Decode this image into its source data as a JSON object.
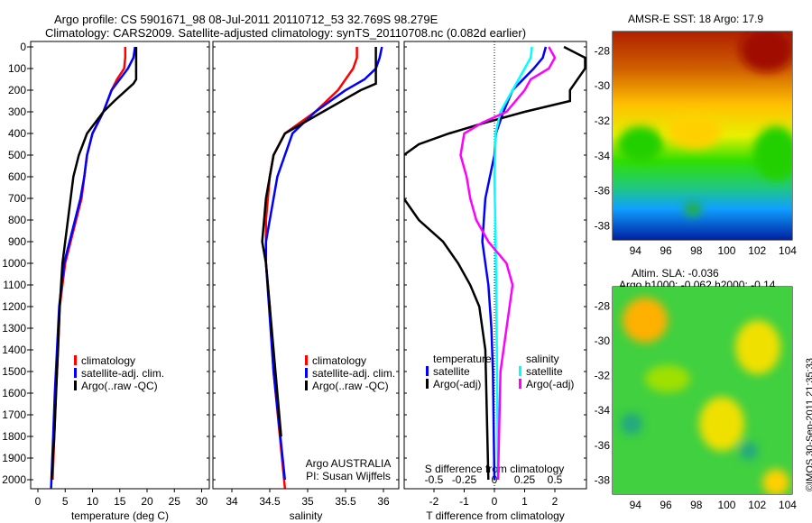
{
  "title_line1": "Argo profile: CS 5901671_98 08-Jul-2011 20110712_53 32.769S 98.279E",
  "title_line2": "Climatology: CARS2009. Satellite-adjusted climatology: synTS_20110708.nc (0.082d earlier)",
  "map1_title": "AMSR-E SST: 18 Argo: 17.9",
  "map2_title1": "Altim. SLA: -0.036",
  "map2_title2": "Argo h1000: -0.062 h2000: -0.14",
  "side_label": "©IMOS 30-Sep-2011 21:35:33",
  "colors": {
    "climatology": "#ff0000",
    "satellite": "#0000ff",
    "argo": "#000000",
    "s_satellite": "#00ffff",
    "s_argo": "#ff00ff"
  },
  "chart_data": [
    {
      "type": "line",
      "xlabel": "temperature (deg C)",
      "ylabel": "",
      "xlim": [
        -1.5,
        31
      ],
      "ylim": [
        2040,
        -25
      ],
      "xticks": [
        "0",
        "5",
        "10",
        "15",
        "20",
        "25",
        "30"
      ],
      "yticks": [
        "0",
        "100",
        "200",
        "300",
        "400",
        "500",
        "600",
        "700",
        "800",
        "900",
        "1000",
        "1100",
        "1200",
        "1300",
        "1400",
        "1500",
        "1600",
        "1700",
        "1800",
        "1900",
        "2000"
      ],
      "legend": [
        "climatology",
        "satellite-adj. clim.",
        "Argo(..raw -QC)"
      ],
      "series": [
        {
          "name": "climatology",
          "color": "#ff0000",
          "depth": [
            0,
            50,
            100,
            150,
            200,
            300,
            400,
            500,
            600,
            700,
            800,
            900,
            1000,
            1200,
            1400,
            1600,
            1800,
            2000
          ],
          "values": [
            16,
            16,
            15.8,
            14.5,
            13.5,
            12,
            10,
            9,
            8.5,
            8,
            7,
            6,
            5,
            4,
            3.7,
            3.3,
            3,
            2.7
          ]
        },
        {
          "name": "satellite-adj. clim.",
          "color": "#0000ff",
          "depth": [
            0,
            50,
            100,
            150,
            200,
            300,
            400,
            500,
            600,
            700,
            800,
            900,
            1000,
            1200,
            1400,
            1600,
            1800,
            2050
          ],
          "values": [
            17.8,
            17.5,
            16.5,
            15,
            13.5,
            12,
            10,
            9,
            8.5,
            7.8,
            6.8,
            5.8,
            4.8,
            3.9,
            3.5,
            3.1,
            2.8,
            2.4
          ]
        },
        {
          "name": "Argo(..raw -QC)",
          "color": "#000000",
          "depth": [
            0,
            50,
            150,
            170,
            250,
            300,
            400,
            500,
            600,
            700,
            900,
            1000,
            1200,
            1500,
            1800,
            2000
          ],
          "values": [
            18,
            18,
            18,
            17.5,
            14,
            12,
            9,
            7.5,
            6.5,
            6,
            5,
            4.5,
            4,
            3.5,
            3,
            2.5
          ]
        }
      ]
    },
    {
      "type": "line",
      "xlabel": "salinity",
      "xlim": [
        33.75,
        36.05
      ],
      "ylim": [
        2040,
        -25
      ],
      "xticks": [
        "34",
        "34.5",
        "35",
        "35.5",
        "36"
      ],
      "legend": [
        "climatology",
        "satellite-adj. clim.",
        "Argo(..raw -QC)"
      ],
      "annotation": [
        "Argo AUSTRALIA",
        "PI: Susan Wijffels"
      ],
      "series": [
        {
          "name": "climatology",
          "color": "#ff0000",
          "depth": [
            0,
            50,
            100,
            200,
            300,
            350,
            400,
            500,
            600,
            800,
            1000,
            1200,
            1500,
            2040
          ],
          "values": [
            35.65,
            35.65,
            35.6,
            35.4,
            35.1,
            34.9,
            34.7,
            34.55,
            34.5,
            34.45,
            34.45,
            34.5,
            34.55,
            34.7
          ]
        },
        {
          "name": "satellite-adj. clim.",
          "color": "#0000ff",
          "depth": [
            0,
            50,
            100,
            150,
            200,
            300,
            400,
            600,
            800,
            900,
            1000,
            1500,
            2000
          ],
          "values": [
            35.98,
            35.95,
            35.9,
            35.75,
            35.5,
            35.1,
            34.8,
            34.6,
            34.5,
            34.45,
            34.45,
            34.55,
            34.7
          ]
        },
        {
          "name": "Argo(..raw -QC)",
          "color": "#000000",
          "depth": [
            0,
            100,
            170,
            200,
            300,
            350,
            400,
            500,
            700,
            900,
            1000,
            1200,
            1600,
            1800
          ],
          "values": [
            35.9,
            35.9,
            35.9,
            35.7,
            35.2,
            34.95,
            34.7,
            34.55,
            34.45,
            34.4,
            34.45,
            34.5,
            34.6,
            34.65
          ]
        }
      ]
    },
    {
      "type": "line",
      "xlabel": "T difference from climatology",
      "x2label": "S difference from climatology",
      "xlim": [
        -3,
        3
      ],
      "ylim": [
        2040,
        -25
      ],
      "xticks": [
        "-2",
        "-1",
        "0",
        "1",
        "2"
      ],
      "x2ticks": [
        "-0.5",
        "-0.25",
        "0",
        "0.25",
        "0.5"
      ],
      "legend_t": {
        "header": "temperature",
        "items": [
          "satellite",
          "Argo(-adj)"
        ]
      },
      "legend_s": {
        "header": "salinity",
        "items": [
          "satellite",
          "Argo(-adj)"
        ]
      },
      "series": [
        {
          "name": "T satellite",
          "color": "#0000ff",
          "scale": 1,
          "depth": [
            0,
            50,
            100,
            200,
            300,
            400,
            500,
            700,
            900,
            1000,
            1100,
            1300,
            1500,
            2000
          ],
          "values": [
            1.7,
            1.6,
            1.3,
            0.6,
            0.3,
            0.05,
            0,
            -0.3,
            -0.4,
            -0.3,
            -0.2,
            -0.1,
            -0.05,
            0
          ]
        },
        {
          "name": "T Argo(-adj)",
          "color": "#000000",
          "scale": 1,
          "depth": [
            0,
            50,
            100,
            200,
            250,
            300,
            350,
            400,
            450,
            500,
            700,
            800,
            900,
            1000,
            1100,
            1200,
            1400,
            2000
          ],
          "values": [
            2.3,
            3,
            3,
            2.5,
            2.5,
            1,
            -0.3,
            -1.5,
            -2.5,
            -3,
            -3,
            -2.5,
            -1.7,
            -1.2,
            -0.8,
            -0.5,
            -0.3,
            -0.2
          ]
        },
        {
          "name": "S satellite",
          "color": "#00ffff",
          "scale": 4,
          "depth": [
            0,
            50,
            100,
            200,
            300,
            400,
            600,
            900,
            1400,
            2000
          ],
          "values": [
            0.31,
            0.3,
            0.25,
            0.15,
            0.05,
            0.01,
            0,
            0.01,
            0.02,
            0.03
          ]
        },
        {
          "name": "S Argo(-adj)",
          "color": "#ff00ff",
          "scale": 4,
          "depth": [
            0,
            50,
            100,
            150,
            200,
            300,
            350,
            400,
            500,
            600,
            700,
            800,
            900,
            1000,
            1100,
            1300,
            1500,
            2000
          ],
          "values": [
            0.45,
            0.5,
            0.45,
            0.3,
            0.25,
            0.1,
            -0.1,
            -0.25,
            -0.28,
            -0.23,
            -0.2,
            -0.15,
            -0.05,
            0.1,
            0.15,
            0.1,
            0.05,
            0.03
          ]
        }
      ]
    },
    {
      "type": "heatmap",
      "title": "AMSR-E SST: 18 Argo: 17.9",
      "xticks": [
        "94",
        "96",
        "98",
        "100",
        "102",
        "104"
      ],
      "yticks": [
        "-28",
        "-30",
        "-32",
        "-34",
        "-36",
        "-38"
      ],
      "marker": [
        98.279,
        -32.769
      ]
    },
    {
      "type": "heatmap",
      "title": "Altim. SLA: -0.036",
      "xticks": [
        "94",
        "96",
        "98",
        "100",
        "102",
        "104"
      ],
      "yticks": [
        "-28",
        "-30",
        "-32",
        "-34",
        "-36",
        "-38"
      ],
      "marker": [
        98.279,
        -32.769
      ]
    }
  ]
}
